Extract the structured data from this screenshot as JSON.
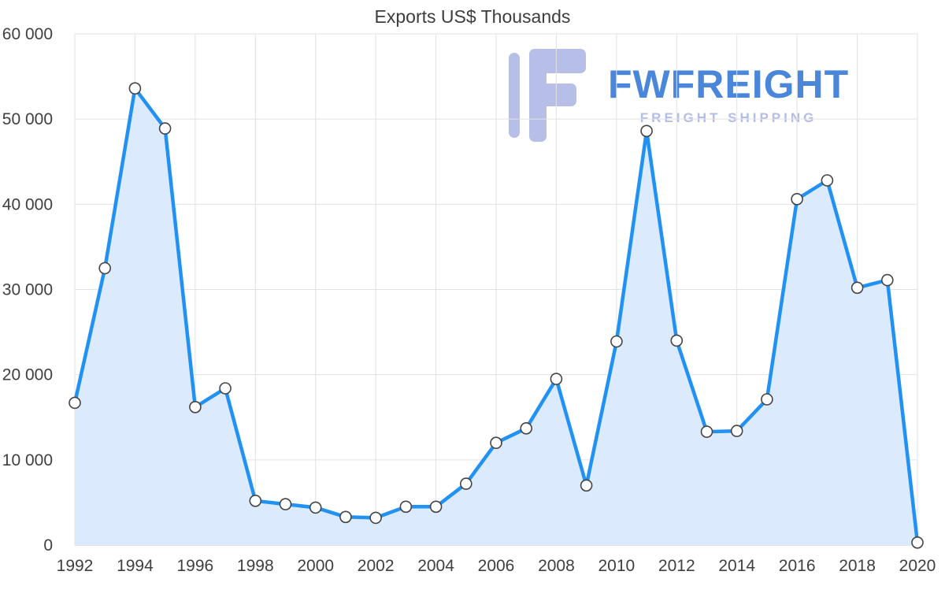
{
  "title": "Exports US$ Thousands",
  "watermark": {
    "brand": "FWFREIGHT",
    "tagline": "FREIGHT SHIPPING",
    "logo_color": "#b7bfe9",
    "brand_color": "#4a86d9",
    "tagline_color": "#b4bce8"
  },
  "chart_data": {
    "type": "area",
    "title": "Exports US$ Thousands",
    "series_name": "Exports US$ Thousands",
    "x": [
      1992,
      1993,
      1994,
      1995,
      1996,
      1997,
      1998,
      1999,
      2000,
      2001,
      2002,
      2003,
      2004,
      2005,
      2006,
      2007,
      2008,
      2009,
      2010,
      2011,
      2012,
      2013,
      2014,
      2015,
      2016,
      2017,
      2018,
      2019,
      2020
    ],
    "values": [
      16700,
      32500,
      53600,
      48900,
      16200,
      18400,
      5200,
      4800,
      4400,
      3300,
      3200,
      4500,
      4500,
      7200,
      12000,
      13700,
      19500,
      7000,
      23900,
      48600,
      24000,
      13300,
      13400,
      17100,
      40600,
      42800,
      30200,
      31100,
      300
    ],
    "xlabel": "",
    "ylabel": "",
    "ylim": [
      0,
      60000
    ],
    "yticks": [
      0,
      10000,
      20000,
      30000,
      40000,
      50000,
      60000
    ],
    "ytick_labels": [
      "0",
      "10 000",
      "20 000",
      "30 000",
      "40 000",
      "50 000",
      "60 000"
    ],
    "xticks": [
      1992,
      1994,
      1996,
      1998,
      2000,
      2002,
      2004,
      2006,
      2008,
      2010,
      2012,
      2014,
      2016,
      2018,
      2020
    ],
    "xtick_labels": [
      "1992",
      "1994",
      "1996",
      "1998",
      "2000",
      "2002",
      "2004",
      "2006",
      "2008",
      "2010",
      "2012",
      "2014",
      "2016",
      "2018",
      "2020"
    ],
    "grid": true,
    "legend": "none",
    "colors": {
      "line": "#2191f3",
      "fill": "#dbeafd",
      "marker_fill": "#ffffff",
      "marker_stroke": "#444444",
      "grid": "#e2e2e2",
      "axis": "#c9c9c9",
      "text": "#3f3f3f"
    }
  }
}
